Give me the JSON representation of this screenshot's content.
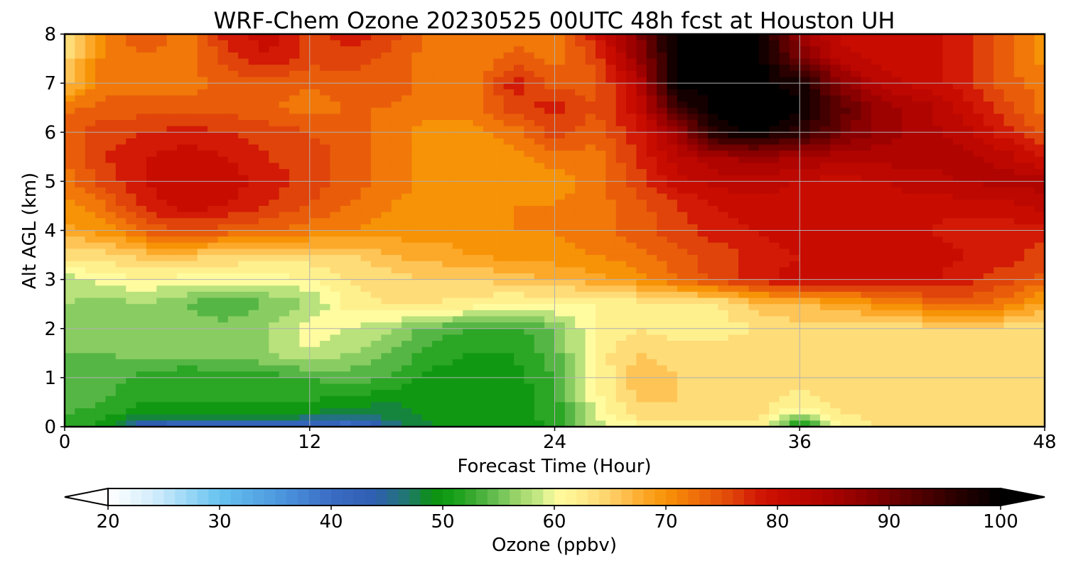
{
  "chart_data": {
    "type": "heatmap",
    "title": "WRF-Chem Ozone  20230525 00UTC 48h fcst at Houston UH",
    "xlabel": "Forecast Time (Hour)",
    "ylabel": "Alt AGL (km)",
    "xlim": [
      0,
      48
    ],
    "ylim": [
      0,
      8
    ],
    "x_ticks": [
      "0",
      "12",
      "24",
      "36",
      "48"
    ],
    "x_tick_values": [
      0,
      12,
      24,
      36,
      48
    ],
    "y_ticks": [
      "0",
      "1",
      "2",
      "3",
      "4",
      "5",
      "6",
      "7",
      "8"
    ],
    "y_tick_values": [
      0,
      1,
      2,
      3,
      4,
      5,
      6,
      7,
      8
    ],
    "grid": true,
    "x": [
      0,
      2,
      4,
      6,
      8,
      10,
      12,
      14,
      16,
      18,
      20,
      22,
      24,
      26,
      28,
      30,
      32,
      34,
      36,
      38,
      40,
      42,
      44,
      46,
      48
    ],
    "y": [
      0,
      0.25,
      0.5,
      1,
      1.5,
      2,
      2.5,
      3,
      3.5,
      4,
      4.5,
      5,
      5.5,
      6,
      6.5,
      7,
      7.5,
      8
    ],
    "z": [
      [
        52,
        50,
        42,
        40,
        40,
        40,
        40,
        38,
        46,
        49,
        50,
        50,
        51,
        58,
        60,
        62,
        62,
        62,
        49,
        60,
        64,
        64,
        64,
        64,
        64
      ],
      [
        53,
        52,
        49,
        50,
        50,
        50,
        49,
        47,
        48,
        50,
        50,
        50,
        52,
        59,
        64,
        65,
        64,
        64,
        58,
        63,
        64,
        64,
        64,
        64,
        64
      ],
      [
        54,
        53,
        51,
        51,
        51,
        51,
        51,
        50,
        49,
        50,
        50,
        50,
        52,
        60,
        65,
        65,
        64,
        64,
        62,
        64,
        64,
        64,
        64,
        64,
        64
      ],
      [
        55,
        54,
        52,
        51,
        52,
        52,
        53,
        54,
        53,
        50,
        50,
        50,
        53,
        61,
        66,
        65,
        64,
        65,
        64,
        64,
        64,
        64,
        64,
        64,
        64
      ],
      [
        55,
        55,
        56,
        56,
        56,
        57,
        59,
        57,
        55,
        52,
        51,
        51,
        54,
        62,
        65,
        64,
        64,
        65,
        65,
        64,
        64,
        64,
        64,
        64,
        64
      ],
      [
        56,
        56,
        56,
        56,
        56,
        57,
        60,
        59,
        57,
        54,
        53,
        52,
        55,
        61,
        63,
        62,
        62,
        63,
        64,
        64,
        64,
        64,
        64,
        64,
        63
      ],
      [
        57,
        56,
        57,
        55,
        53,
        55,
        57,
        62,
        63,
        63,
        62,
        61,
        61,
        61,
        62,
        62,
        63,
        66,
        67,
        68,
        70,
        72,
        74,
        72,
        68
      ],
      [
        58,
        60,
        61,
        60,
        60,
        60,
        61,
        63,
        64,
        65,
        65,
        66,
        67,
        68,
        70,
        73,
        76,
        78,
        80,
        80,
        80,
        80,
        78,
        76,
        74
      ],
      [
        64,
        64,
        66,
        66,
        65,
        64,
        64,
        65,
        67,
        68,
        69,
        70,
        70,
        71,
        72,
        74,
        76,
        78,
        79,
        80,
        80,
        80,
        79,
        78,
        76
      ],
      [
        68,
        70,
        74,
        75,
        74,
        73,
        72,
        71,
        70,
        70,
        70,
        71,
        71,
        72,
        74,
        76,
        78,
        79,
        80,
        80,
        80,
        79,
        78,
        78,
        78
      ],
      [
        70,
        73,
        78,
        80,
        79,
        77,
        75,
        73,
        71,
        70,
        70,
        71,
        71,
        72,
        74,
        77,
        79,
        80,
        80,
        80,
        80,
        80,
        80,
        80,
        82
      ],
      [
        72,
        76,
        79,
        81,
        80,
        78,
        76,
        74,
        72,
        70,
        69,
        70,
        70,
        72,
        76,
        80,
        82,
        82,
        81,
        80,
        81,
        82,
        83,
        84,
        84
      ],
      [
        73,
        77,
        79,
        80,
        79,
        77,
        76,
        74,
        72,
        70,
        69,
        70,
        72,
        72,
        77,
        82,
        85,
        86,
        85,
        84,
        84,
        84,
        84,
        82,
        78
      ],
      [
        74,
        76,
        77,
        78,
        77,
        76,
        75,
        74,
        72,
        70,
        70,
        72,
        76,
        74,
        78,
        86,
        98,
        100,
        96,
        90,
        86,
        84,
        82,
        78,
        74
      ],
      [
        72,
        74,
        74,
        74,
        74,
        73,
        72,
        73,
        73,
        72,
        72,
        76,
        78,
        75,
        80,
        95,
        100,
        100,
        100,
        92,
        86,
        84,
        80,
        76,
        72
      ],
      [
        66,
        72,
        72,
        72,
        74,
        74,
        73,
        74,
        74,
        72,
        72,
        78,
        74,
        74,
        82,
        100,
        100,
        100,
        98,
        88,
        82,
        80,
        78,
        74,
        72
      ],
      [
        64,
        72,
        73,
        72,
        76,
        79,
        76,
        76,
        74,
        72,
        71,
        74,
        72,
        76,
        86,
        100,
        100,
        100,
        90,
        82,
        80,
        80,
        78,
        74,
        70
      ],
      [
        62,
        72,
        74,
        72,
        78,
        80,
        76,
        78,
        76,
        72,
        71,
        72,
        72,
        78,
        88,
        100,
        100,
        100,
        86,
        80,
        80,
        80,
        78,
        74,
        70
      ]
    ],
    "colorbar": {
      "label": "Ozone  (ppbv)",
      "min": 20,
      "max": 100,
      "extend": "both",
      "ticks": [
        "20",
        "30",
        "40",
        "50",
        "60",
        "70",
        "80",
        "90",
        "100"
      ],
      "tick_values": [
        20,
        30,
        40,
        50,
        60,
        70,
        80,
        90,
        100
      ],
      "stops": [
        [
          20,
          "#ffffff"
        ],
        [
          24,
          "#d4eefc"
        ],
        [
          30,
          "#66c2f0"
        ],
        [
          36,
          "#4a92dc"
        ],
        [
          40,
          "#3a6cc4"
        ],
        [
          44,
          "#2e5eb0"
        ],
        [
          47,
          "#1f7a6a"
        ],
        [
          49,
          "#0b9010"
        ],
        [
          51,
          "#16a016"
        ],
        [
          53,
          "#3fab34"
        ],
        [
          55,
          "#6cc155"
        ],
        [
          57,
          "#a5d86e"
        ],
        [
          59,
          "#ccec8a"
        ],
        [
          60,
          "#fffca0"
        ],
        [
          62,
          "#fff08e"
        ],
        [
          64,
          "#fedc78"
        ],
        [
          66,
          "#fec456"
        ],
        [
          68,
          "#fca828"
        ],
        [
          70,
          "#f79306"
        ],
        [
          73,
          "#ee6a0a"
        ],
        [
          76,
          "#e0440a"
        ],
        [
          78,
          "#d21a06"
        ],
        [
          80,
          "#c80c00"
        ],
        [
          84,
          "#b00400"
        ],
        [
          88,
          "#8a0000"
        ],
        [
          92,
          "#5a0000"
        ],
        [
          96,
          "#2a0000"
        ],
        [
          100,
          "#000000"
        ]
      ]
    }
  }
}
